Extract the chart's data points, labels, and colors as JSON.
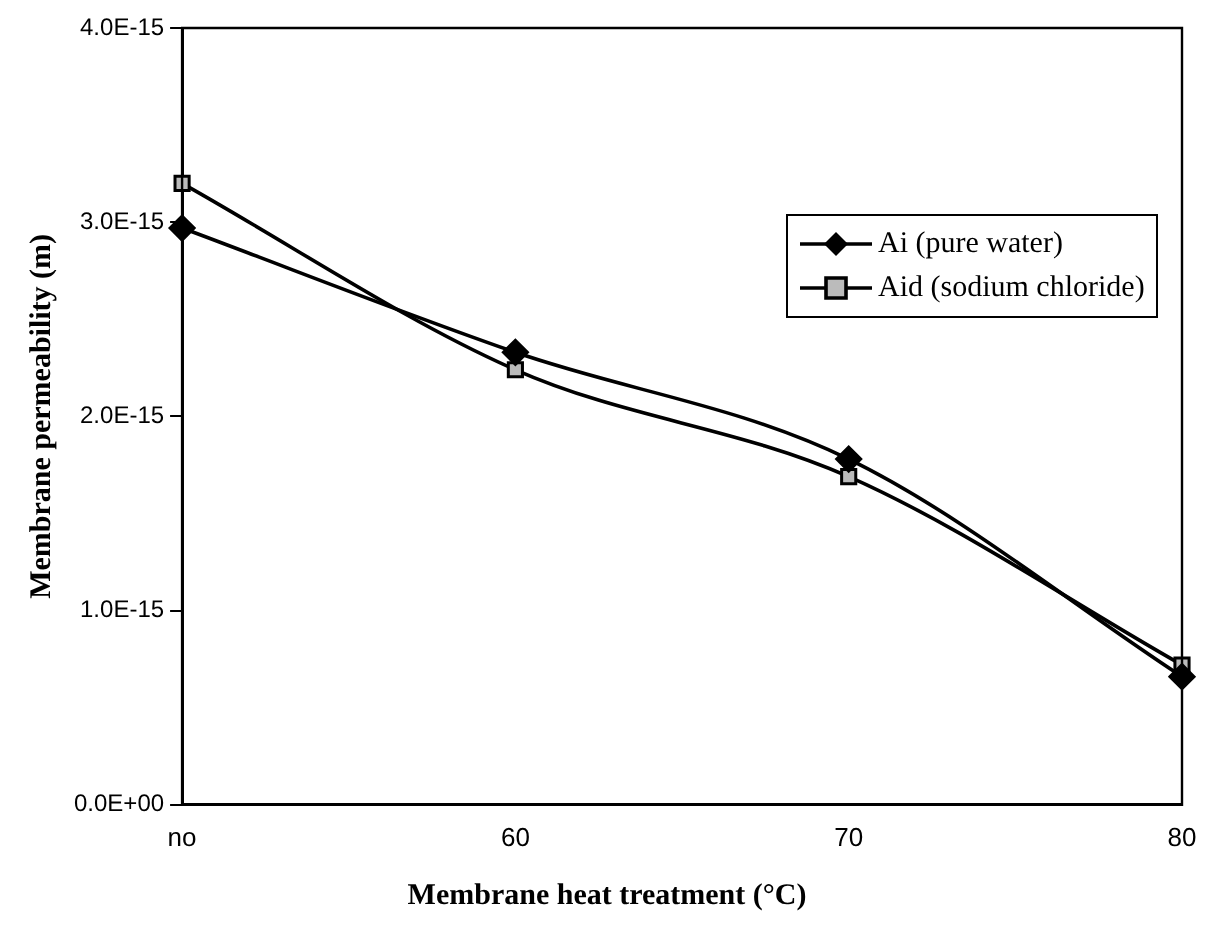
{
  "chart_data": {
    "type": "line",
    "xlabel": "Membrane heat treatment (°C)",
    "ylabel": "Membrane permeability (m)",
    "categories": [
      "no",
      "60",
      "70",
      "80"
    ],
    "series": [
      {
        "name": "Ai (pure water)",
        "color": "#000000",
        "marker": "diamond",
        "values": [
          2.97e-15,
          2.33e-15,
          1.78e-15,
          6.6e-16
        ]
      },
      {
        "name": "Aid (sodium chloride)",
        "color": "#000000",
        "marker": "square",
        "values": [
          3.2e-15,
          2.24e-15,
          1.69e-15,
          7.2e-16
        ]
      }
    ],
    "ylim": [
      0,
      4e-15
    ],
    "yticks": [
      {
        "value": 0,
        "label": "0.0E+00"
      },
      {
        "value": 1e-15,
        "label": "1.0E-15"
      },
      {
        "value": 2e-15,
        "label": "2.0E-15"
      },
      {
        "value": 3e-15,
        "label": "3.0E-15"
      },
      {
        "value": 4e-15,
        "label": "4.0E-15"
      }
    ],
    "grid": false,
    "legend": "right"
  }
}
